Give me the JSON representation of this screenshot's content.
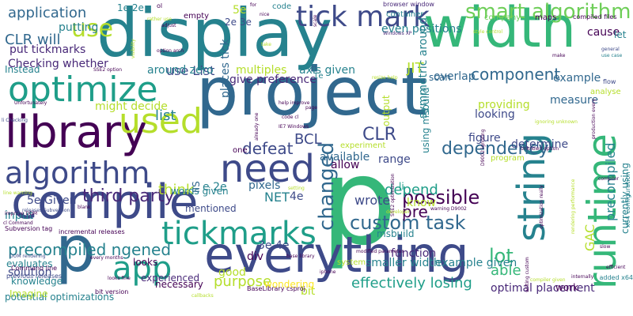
{
  "background_color": "#ffffff",
  "palette": {
    "dark_purple": "#440154",
    "purple": "#482878",
    "indigo": "#3e4a89",
    "slate_blue": "#31688e",
    "teal_blue": "#26828e",
    "teal": "#1f9e89",
    "green": "#35b779",
    "light_green": "#6ece58",
    "lime": "#b5de2b",
    "yellow": "#fde725"
  },
  "words": [
    {
      "text": "project",
      "color": "#31688e"
    },
    {
      "text": "p",
      "color": "#35b779"
    },
    {
      "text": "display",
      "color": "#26828e"
    },
    {
      "text": "compile",
      "color": "#3e4a89"
    },
    {
      "text": "everything",
      "color": "#3e4a89"
    },
    {
      "text": "library",
      "color": "#440154"
    },
    {
      "text": "width",
      "color": "#35b779"
    },
    {
      "text": "string",
      "color": "#26828e"
    },
    {
      "text": "runtime",
      "color": "#35b779"
    },
    {
      "text": "optimize",
      "color": "#1f9e89"
    },
    {
      "text": "tick mark",
      "color": "#3e4a89"
    },
    {
      "text": "need",
      "color": "#3e4a89"
    },
    {
      "text": "used",
      "color": "#b5de2b"
    },
    {
      "text": "algorithm",
      "color": "#3e4a89"
    },
    {
      "text": "tickmarks",
      "color": "#1f9e89"
    },
    {
      "text": "p",
      "color": "#31688e"
    },
    {
      "text": "app",
      "color": "#1f9e89"
    },
    {
      "text": "smart algorithm",
      "color": "#6ece58"
    },
    {
      "text": "use",
      "color": "#b5de2b"
    },
    {
      "text": "custom task",
      "color": "#31688e"
    },
    {
      "text": "changed",
      "color": "#31688e"
    },
    {
      "text": "component",
      "color": "#31688e"
    },
    {
      "text": "dependency",
      "color": "#31688e"
    },
    {
      "text": "precompiled ngened",
      "color": "#26828e"
    },
    {
      "text": "third party",
      "color": "#482878"
    },
    {
      "text": "lot",
      "color": "#35b779"
    },
    {
      "text": "possible",
      "color": "#440154"
    },
    {
      "text": "defeat",
      "color": "#3e4a89"
    },
    {
      "text": "CLR",
      "color": "#3e4a89"
    },
    {
      "text": "application",
      "color": "#31688e"
    },
    {
      "text": "list",
      "color": "#26828e"
    },
    {
      "text": "effectively losing",
      "color": "#1f9e89"
    },
    {
      "text": "pre",
      "color": "#440154"
    },
    {
      "text": "purpose",
      "color": "#b5de2b"
    },
    {
      "text": "depend",
      "color": "#1f9e89"
    },
    {
      "text": "think",
      "color": "#b5de2b"
    },
    {
      "text": "able",
      "color": "#35b779"
    },
    {
      "text": "CLR will",
      "color": "#31688e"
    },
    {
      "text": "use List",
      "color": "#3e4a89"
    },
    {
      "text": "put tickmarks",
      "color": "#482878"
    },
    {
      "text": "BCL",
      "color": "#3e4a89"
    },
    {
      "text": "JIT",
      "color": "#b5de2b"
    },
    {
      "text": "NET",
      "color": "#26828e"
    },
    {
      "text": "looking",
      "color": "#3e4a89"
    },
    {
      "text": "optimal placement",
      "color": "#482878"
    },
    {
      "text": "Checking whether",
      "color": "#482878"
    },
    {
      "text": "bit",
      "color": "#b5de2b"
    },
    {
      "text": "function",
      "color": "#482878"
    },
    {
      "text": "figure",
      "color": "#3e4a89"
    },
    {
      "text": "determine",
      "color": "#3e4a89"
    },
    {
      "text": "providing",
      "color": "#b5de2b"
    },
    {
      "text": "measure",
      "color": "#31688e"
    },
    {
      "text": "example",
      "color": "#31688e"
    },
    {
      "text": "symmetric around",
      "color": "#26828e"
    },
    {
      "text": "give preference",
      "color": "#482878"
    },
    {
      "text": "axis given",
      "color": "#26828e"
    },
    {
      "text": "multiples",
      "color": "#b5de2b"
    },
    {
      "text": "around zero",
      "color": "#26828e"
    },
    {
      "text": "might decide",
      "color": "#b5de2b"
    },
    {
      "text": "places tick",
      "color": "#31688e"
    },
    {
      "text": "even positions",
      "color": "#26828e"
    },
    {
      "text": "overlap",
      "color": "#31688e"
    },
    {
      "text": "scan",
      "color": "#31688e"
    },
    {
      "text": "cause",
      "color": "#440154"
    },
    {
      "text": "let",
      "color": "#26828e"
    },
    {
      "text": "putting",
      "color": "#26828e"
    },
    {
      "text": "output",
      "color": "#b5de2b"
    },
    {
      "text": "range",
      "color": "#3e4a89"
    },
    {
      "text": "available",
      "color": "#31688e"
    },
    {
      "text": "allow",
      "color": "#440154"
    },
    {
      "text": "wrote",
      "color": "#3e4a89"
    },
    {
      "text": "know",
      "color": "#b5de2b"
    },
    {
      "text": "Instead",
      "color": "#26828e"
    },
    {
      "text": "input",
      "color": "#26828e"
    },
    {
      "text": "good",
      "color": "#b5de2b"
    },
    {
      "text": "div",
      "color": "#440154"
    },
    {
      "text": "pixels",
      "color": "#31688e"
    },
    {
      "text": "mentioned",
      "color": "#3e4a89"
    },
    {
      "text": "words given",
      "color": "#26828e"
    },
    {
      "text": "e 2e",
      "color": "#26828e"
    },
    {
      "text": "4e",
      "color": "#3e4a89"
    },
    {
      "text": "3e 4e",
      "color": "#3e4a89"
    },
    {
      "text": "5e Given",
      "color": "#3e4a89"
    },
    {
      "text": "msbuild",
      "color": "#26828e"
    },
    {
      "text": "solution",
      "color": "#3e4a89"
    },
    {
      "text": "knowledge",
      "color": "#26828e"
    },
    {
      "text": "evaluates",
      "color": "#26828e"
    },
    {
      "text": "experienced",
      "color": "#482878"
    },
    {
      "text": "looks",
      "color": "#440154"
    },
    {
      "text": "wondering",
      "color": "#fde725"
    },
    {
      "text": "necessary",
      "color": "#440154"
    },
    {
      "text": "smaller width",
      "color": "#26828e"
    },
    {
      "text": "example given",
      "color": "#26828e"
    },
    {
      "text": "potential optimizations",
      "color": "#26828e"
    },
    {
      "text": "Imagine",
      "color": "#b5de2b"
    },
    {
      "text": "work",
      "color": "#440154"
    },
    {
      "text": "GAC",
      "color": "#b5de2b"
    },
    {
      "text": "precompiled",
      "color": "#26828e"
    },
    {
      "text": "currently using",
      "color": "#26828e"
    },
    {
      "text": "1e 2e",
      "color": "#26828e"
    },
    {
      "text": "2e 3e",
      "color": "#3e4a89"
    },
    {
      "text": "5e",
      "color": "#b5de2b"
    },
    {
      "text": "code",
      "color": "#26828e"
    },
    {
      "text": "empty",
      "color": "#440154"
    },
    {
      "text": "container",
      "color": "#26828e"
    },
    {
      "text": "maps",
      "color": "#440154"
    },
    {
      "text": "company",
      "color": "#6ece58"
    },
    {
      "text": "compiled files",
      "color": "#440154"
    },
    {
      "text": "using msbuild",
      "color": "#26828e"
    },
    {
      "text": "experiment",
      "color": "#b5de2b"
    },
    {
      "text": "program",
      "color": "#b5de2b"
    },
    {
      "text": "1e",
      "color": "#26828e"
    },
    {
      "text": "li",
      "color": "#1f9e89"
    },
    {
      "text": "Windows XP",
      "color": "#482878"
    },
    {
      "text": "browser window",
      "color": "#482878"
    },
    {
      "text": "IE7 Windows",
      "color": "#440154"
    },
    {
      "text": "code cl",
      "color": "#440154"
    },
    {
      "text": "one",
      "color": "#440154"
    },
    {
      "text": "IIS",
      "color": "#31688e"
    },
    {
      "text": "base library",
      "color": "#440154"
    },
    {
      "text": "modified parameter",
      "color": "#440154"
    },
    {
      "text": "system",
      "color": "#b5de2b"
    },
    {
      "text": "Subversion tag",
      "color": "#440154"
    },
    {
      "text": "Command line",
      "color": "#440154"
    },
    {
      "text": "BaseLibrary csproj",
      "color": "#440154"
    },
    {
      "text": "bit version",
      "color": "#440154"
    },
    {
      "text": "previous releases",
      "color": "#3e4a89"
    },
    {
      "text": "releases Subversion",
      "color": "#3e4a89"
    },
    {
      "text": "incremental releases",
      "color": "#440154"
    },
    {
      "text": "every months",
      "color": "#440154"
    },
    {
      "text": "looks fine",
      "color": "#440154"
    },
    {
      "text": "compiler given",
      "color": "#b5de2b"
    },
    {
      "text": "added x64",
      "color": "#26828e"
    },
    {
      "text": "x64 configuration",
      "color": "#26828e"
    },
    {
      "text": "compiler",
      "color": "#440154"
    },
    {
      "text": "slow",
      "color": "#440154"
    },
    {
      "text": "efficient",
      "color": "#440154"
    },
    {
      "text": "internally",
      "color": "#440154"
    },
    {
      "text": "analyse",
      "color": "#b5de2b"
    },
    {
      "text": "flow",
      "color": "#3e4a89"
    },
    {
      "text": "general",
      "color": "#3e4a89"
    },
    {
      "text": "use case",
      "color": "#26828e"
    },
    {
      "text": "make",
      "color": "#440154"
    },
    {
      "text": "resize help",
      "color": "#b5de2b"
    },
    {
      "text": "Unfortunately",
      "color": "#440154"
    },
    {
      "text": "li Checking",
      "color": "#3e4a89"
    },
    {
      "text": "line warning",
      "color": "#b5de2b"
    },
    {
      "text": "cl Command",
      "color": "#440154"
    },
    {
      "text": "DOM rendering",
      "color": "#3e4a89"
    },
    {
      "text": "improve DOM",
      "color": "#440154"
    },
    {
      "text": "option arch",
      "color": "#440154"
    },
    {
      "text": "SSE2 option",
      "color": "#440154"
    },
    {
      "text": "adjust",
      "color": "#440154"
    },
    {
      "text": "rather use",
      "color": "#b5de2b"
    },
    {
      "text": "ol",
      "color": "#440154"
    },
    {
      "text": "help improve",
      "color": "#440154"
    },
    {
      "text": "already one",
      "color": "#440154"
    },
    {
      "text": "blank",
      "color": "#440154"
    },
    {
      "text": "iphone",
      "color": "#440154"
    },
    {
      "text": "writing custom",
      "color": "#440154"
    },
    {
      "text": "unknown option",
      "color": "#440154"
    },
    {
      "text": "warning D9002",
      "color": "#440154"
    },
    {
      "text": "D9002 ignoring",
      "color": "#440154"
    },
    {
      "text": "ignoring unknown",
      "color": "#b5de2b"
    },
    {
      "text": "optimization really",
      "color": "#440154"
    },
    {
      "text": "rendering performance",
      "color": "#b5de2b"
    },
    {
      "text": "production every",
      "color": "#440154"
    },
    {
      "text": "SSE2 optimization",
      "color": "#440154"
    },
    {
      "text": "developer",
      "color": "#b5de2b"
    },
    {
      "text": "callbacks",
      "color": "#b5de2b"
    },
    {
      "text": "page",
      "color": "#440154"
    },
    {
      "text": "take",
      "color": "#b5de2b"
    },
    {
      "text": "scale",
      "color": "#440154"
    },
    {
      "text": "setting",
      "color": "#b5de2b"
    },
    {
      "text": "visibility",
      "color": "#b5de2b"
    },
    {
      "text": "style control",
      "color": "#b5de2b"
    },
    {
      "text": "for",
      "color": "#440154"
    },
    {
      "text": "nice",
      "color": "#440154"
    }
  ]
}
